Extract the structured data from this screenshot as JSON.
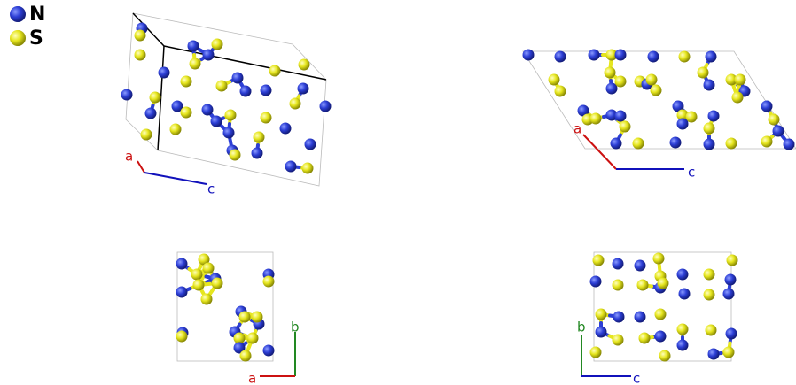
{
  "legend": [
    "N",
    "S"
  ],
  "panels": [
    {
      "axes": [
        "a",
        "c"
      ]
    },
    {
      "axes": [
        "a",
        "c"
      ]
    },
    {
      "axes": [
        "b",
        "a"
      ]
    },
    {
      "axes": [
        "b",
        "c"
      ]
    }
  ]
}
